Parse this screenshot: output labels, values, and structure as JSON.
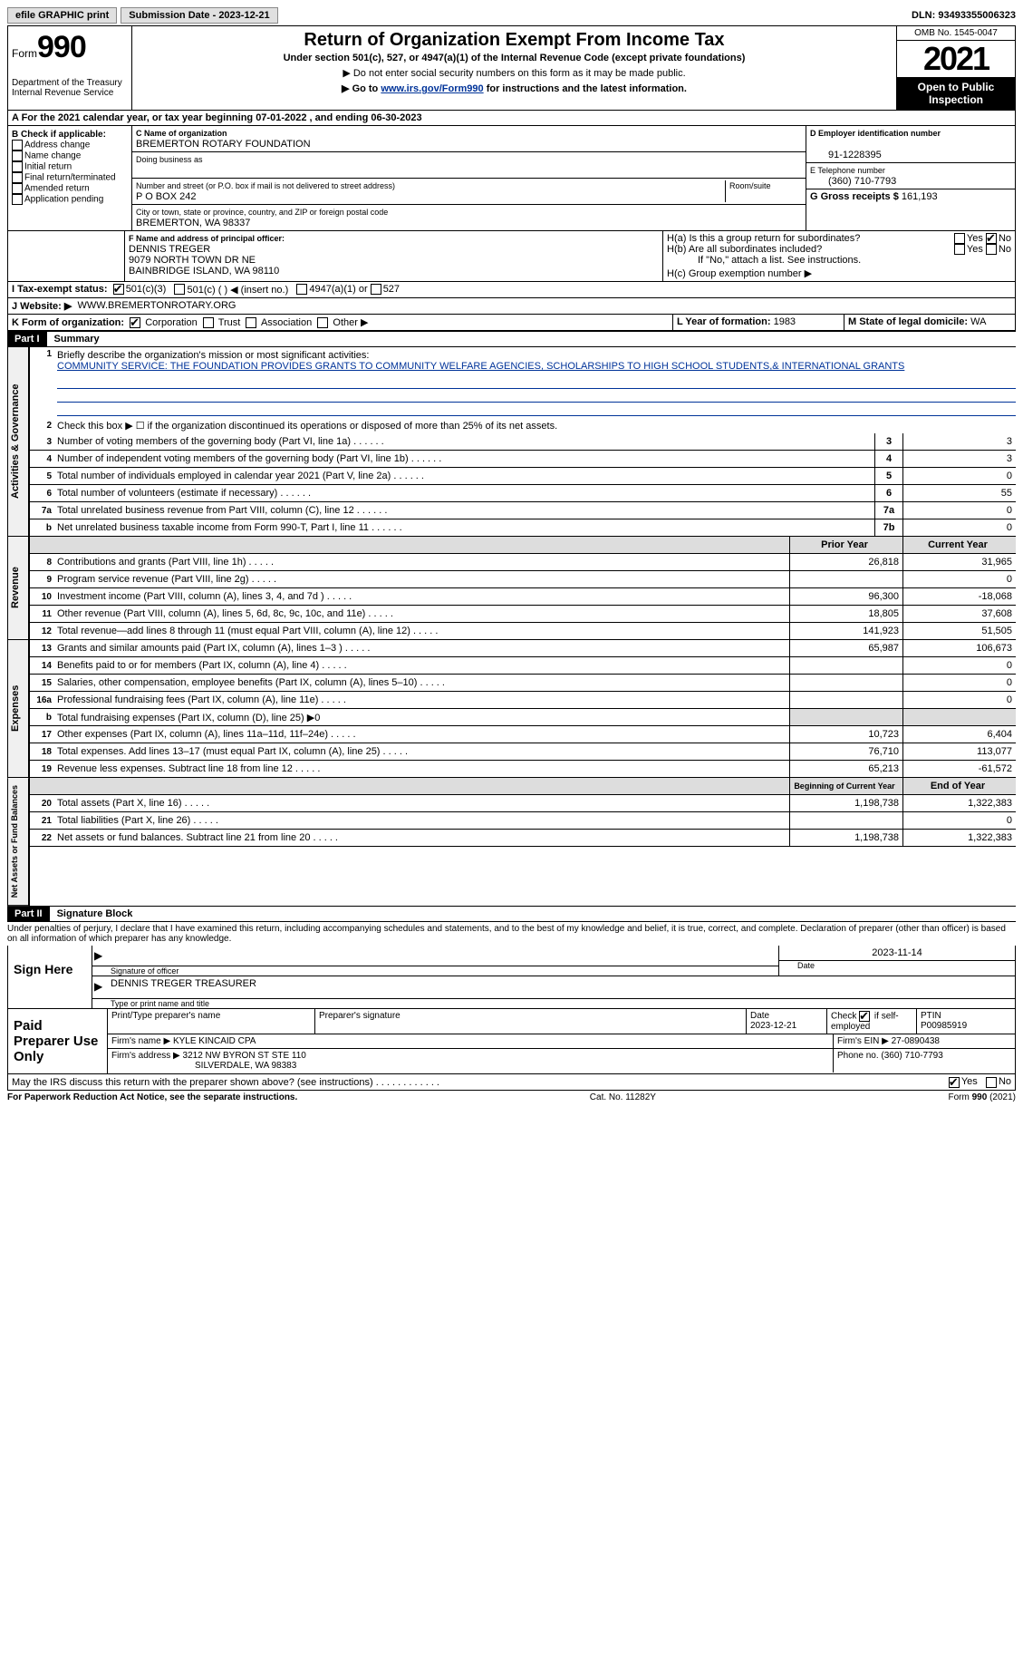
{
  "topbar": {
    "efile": "efile GRAPHIC print",
    "sub_label": "Submission Date - 2023-12-21",
    "dln": "DLN: 93493355006323"
  },
  "header": {
    "form_word": "Form",
    "form_num": "990",
    "dept": "Department of the Treasury",
    "irs": "Internal Revenue Service",
    "title": "Return of Organization Exempt From Income Tax",
    "sub": "Under section 501(c), 527, or 4947(a)(1) of the Internal Revenue Code (except private foundations)",
    "note1": "▶ Do not enter social security numbers on this form as it may be made public.",
    "note2_pre": "▶ Go to ",
    "note2_link": "www.irs.gov/Form990",
    "note2_post": " for instructions and the latest information.",
    "omb": "OMB No. 1545-0047",
    "year": "2021",
    "open": "Open to Public Inspection"
  },
  "lineA": "A For the 2021 calendar year, or tax year beginning 07-01-2022   , and ending 06-30-2023",
  "boxB": {
    "title": "B Check if applicable:",
    "items": [
      "Address change",
      "Name change",
      "Initial return",
      "Final return/terminated",
      "Amended return",
      "Application pending"
    ]
  },
  "boxC": {
    "name_lbl": "C Name of organization",
    "name": "BREMERTON ROTARY FOUNDATION",
    "dba_lbl": "Doing business as",
    "addr_lbl": "Number and street (or P.O. box if mail is not delivered to street address)",
    "room_lbl": "Room/suite",
    "addr": "P O BOX 242",
    "city_lbl": "City or town, state or province, country, and ZIP or foreign postal code",
    "city": "BREMERTON, WA  98337"
  },
  "boxD": {
    "lbl": "D Employer identification number",
    "val": "91-1228395"
  },
  "boxE": {
    "lbl": "E Telephone number",
    "val": "(360) 710-7793"
  },
  "boxG": {
    "lbl": "G Gross receipts $",
    "val": "161,193"
  },
  "boxF": {
    "lbl": "F Name and address of principal officer:",
    "name": "DENNIS TREGER",
    "addr1": "9079 NORTH TOWN DR NE",
    "addr2": "BAINBRIDGE ISLAND, WA  98110"
  },
  "boxH": {
    "a": "H(a)  Is this a group return for subordinates?",
    "b": "H(b)  Are all subordinates included?",
    "b_note": "If \"No,\" attach a list. See instructions.",
    "c": "H(c)  Group exemption number ▶",
    "yes": "Yes",
    "no": "No"
  },
  "boxI": {
    "lbl": "I   Tax-exempt status:",
    "o1": "501(c)(3)",
    "o2": "501(c) (  ) ◀ (insert no.)",
    "o3": "4947(a)(1) or",
    "o4": "527"
  },
  "boxJ": {
    "lbl": "J   Website: ▶",
    "val": "WWW.BREMERTONROTARY.ORG"
  },
  "boxK": {
    "lbl": "K Form of organization:",
    "o1": "Corporation",
    "o2": "Trust",
    "o3": "Association",
    "o4": "Other ▶"
  },
  "boxL": {
    "lbl": "L Year of formation:",
    "val": "1983"
  },
  "boxM": {
    "lbl": "M State of legal domicile:",
    "val": "WA"
  },
  "part1": {
    "tag": "Part I",
    "title": "Summary"
  },
  "vtabs": {
    "ag": "Activities & Governance",
    "rev": "Revenue",
    "exp": "Expenses",
    "na": "Net Assets or Fund Balances"
  },
  "summary": {
    "l1_lbl": "Briefly describe the organization's mission or most significant activities:",
    "l1_text": "COMMUNITY SERVICE: THE FOUNDATION PROVIDES GRANTS TO COMMUNITY WELFARE AGENCIES, SCHOLARSHIPS TO HIGH SCHOOL STUDENTS,& INTERNATIONAL GRANTS",
    "l2": "Check this box ▶ ☐  if the organization discontinued its operations or disposed of more than 25% of its net assets.",
    "lines_ag": [
      {
        "n": "3",
        "t": "Number of voting members of the governing body (Part VI, line 1a)",
        "bn": "3",
        "v": "3"
      },
      {
        "n": "4",
        "t": "Number of independent voting members of the governing body (Part VI, line 1b)",
        "bn": "4",
        "v": "3"
      },
      {
        "n": "5",
        "t": "Total number of individuals employed in calendar year 2021 (Part V, line 2a)",
        "bn": "5",
        "v": "0"
      },
      {
        "n": "6",
        "t": "Total number of volunteers (estimate if necessary)",
        "bn": "6",
        "v": "55"
      },
      {
        "n": "7a",
        "t": "Total unrelated business revenue from Part VIII, column (C), line 12",
        "bn": "7a",
        "v": "0"
      },
      {
        "n": "b",
        "t": "Net unrelated business taxable income from Form 990-T, Part I, line 11",
        "bn": "7b",
        "v": "0"
      }
    ],
    "hdr_prior": "Prior Year",
    "hdr_curr": "Current Year",
    "lines_rev": [
      {
        "n": "8",
        "t": "Contributions and grants (Part VIII, line 1h)",
        "p": "26,818",
        "c": "31,965"
      },
      {
        "n": "9",
        "t": "Program service revenue (Part VIII, line 2g)",
        "p": "",
        "c": "0"
      },
      {
        "n": "10",
        "t": "Investment income (Part VIII, column (A), lines 3, 4, and 7d )",
        "p": "96,300",
        "c": "-18,068"
      },
      {
        "n": "11",
        "t": "Other revenue (Part VIII, column (A), lines 5, 6d, 8c, 9c, 10c, and 11e)",
        "p": "18,805",
        "c": "37,608"
      },
      {
        "n": "12",
        "t": "Total revenue—add lines 8 through 11 (must equal Part VIII, column (A), line 12)",
        "p": "141,923",
        "c": "51,505"
      }
    ],
    "lines_exp": [
      {
        "n": "13",
        "t": "Grants and similar amounts paid (Part IX, column (A), lines 1–3 )",
        "p": "65,987",
        "c": "106,673"
      },
      {
        "n": "14",
        "t": "Benefits paid to or for members (Part IX, column (A), line 4)",
        "p": "",
        "c": "0"
      },
      {
        "n": "15",
        "t": "Salaries, other compensation, employee benefits (Part IX, column (A), lines 5–10)",
        "p": "",
        "c": "0"
      },
      {
        "n": "16a",
        "t": "Professional fundraising fees (Part IX, column (A), line 11e)",
        "p": "",
        "c": "0"
      },
      {
        "n": "b",
        "t": "Total fundraising expenses (Part IX, column (D), line 25) ▶0",
        "p": "grey",
        "c": "grey"
      },
      {
        "n": "17",
        "t": "Other expenses (Part IX, column (A), lines 11a–11d, 11f–24e)",
        "p": "10,723",
        "c": "6,404"
      },
      {
        "n": "18",
        "t": "Total expenses. Add lines 13–17 (must equal Part IX, column (A), line 25)",
        "p": "76,710",
        "c": "113,077"
      },
      {
        "n": "19",
        "t": "Revenue less expenses. Subtract line 18 from line 12",
        "p": "65,213",
        "c": "-61,572"
      }
    ],
    "hdr_beg": "Beginning of Current Year",
    "hdr_end": "End of Year",
    "lines_na": [
      {
        "n": "20",
        "t": "Total assets (Part X, line 16)",
        "p": "1,198,738",
        "c": "1,322,383"
      },
      {
        "n": "21",
        "t": "Total liabilities (Part X, line 26)",
        "p": "",
        "c": "0"
      },
      {
        "n": "22",
        "t": "Net assets or fund balances. Subtract line 21 from line 20",
        "p": "1,198,738",
        "c": "1,322,383"
      }
    ]
  },
  "part2": {
    "tag": "Part II",
    "title": "Signature Block"
  },
  "sig": {
    "decl": "Under penalties of perjury, I declare that I have examined this return, including accompanying schedules and statements, and to the best of my knowledge and belief, it is true, correct, and complete. Declaration of preparer (other than officer) is based on all information of which preparer has any knowledge.",
    "sign_here": "Sign Here",
    "sig_officer": "Signature of officer",
    "date": "Date",
    "date_val": "2023-11-14",
    "name_title": "DENNIS TREGER  TREASURER",
    "name_lbl": "Type or print name and title"
  },
  "prep": {
    "title": "Paid Preparer Use Only",
    "h1": "Print/Type preparer's name",
    "h2": "Preparer's signature",
    "h3_l": "Date",
    "h3": "2023-12-21",
    "h4_l": "Check",
    "h4_s": "if self-employed",
    "h5_l": "PTIN",
    "h5": "P00985919",
    "firm_name_l": "Firm's name    ▶",
    "firm_name": "KYLE KINCAID CPA",
    "firm_ein_l": "Firm's EIN ▶",
    "firm_ein": "27-0890438",
    "firm_addr_l": "Firm's address ▶",
    "firm_addr1": "3212 NW BYRON ST STE 110",
    "firm_addr2": "SILVERDALE, WA  98383",
    "phone_l": "Phone no.",
    "phone": "(360) 710-7793"
  },
  "discuss": {
    "q": "May the IRS discuss this return with the preparer shown above? (see instructions)",
    "yes": "Yes",
    "no": "No"
  },
  "footer": {
    "pra": "For Paperwork Reduction Act Notice, see the separate instructions.",
    "cat": "Cat. No. 11282Y",
    "form": "Form 990 (2021)"
  }
}
